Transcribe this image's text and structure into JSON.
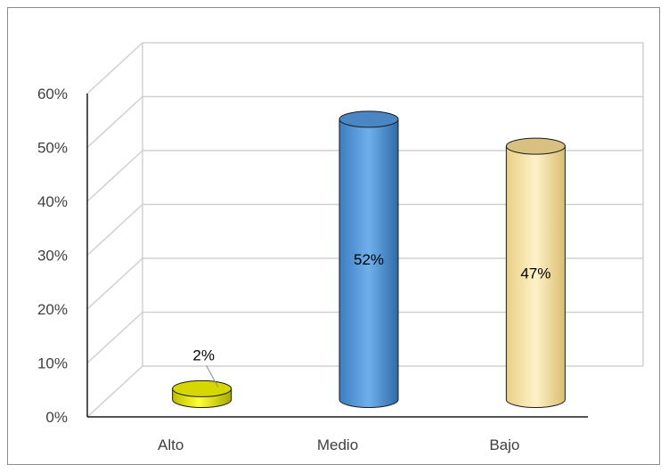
{
  "chart_data": {
    "type": "bar",
    "style": "3d-cylinder",
    "categories": [
      "Alto",
      "Medio",
      "Bajo"
    ],
    "values": [
      2,
      52,
      47
    ],
    "data_labels": [
      "2%",
      "52%",
      "47%"
    ],
    "y_ticks": [
      "0%",
      "10%",
      "20%",
      "30%",
      "40%",
      "50%",
      "60%"
    ],
    "ylim": [
      0,
      60
    ],
    "grid": true,
    "legend": "none",
    "colors": [
      "#e6e600",
      "#5b9bd5",
      "#f5dc97"
    ]
  }
}
